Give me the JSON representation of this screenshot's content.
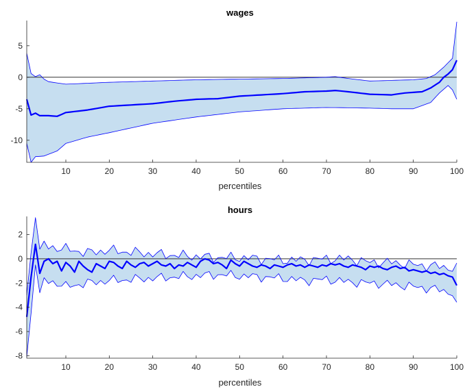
{
  "colors": {
    "band_fill": "#c6def0",
    "band_edge": "#0000ff",
    "median_line": "#0000ff",
    "zero_line": "#333333"
  },
  "chart_data": [
    {
      "type": "area",
      "title": "wages",
      "xlabel": "percentiles",
      "ylabel": "",
      "xlim": [
        1,
        100
      ],
      "ylim": [
        -13.5,
        9
      ],
      "xticks": [
        10,
        20,
        30,
        40,
        50,
        60,
        70,
        80,
        90,
        100
      ],
      "yticks": [
        -10,
        -5,
        0,
        5
      ],
      "ytick_labels": [
        "-10",
        "-5",
        "0",
        "5"
      ],
      "reference_line": 0,
      "x_step": 1,
      "x_start": 1,
      "series": [
        {
          "role": "median",
          "keyframes": [
            [
              1,
              -3.5
            ],
            [
              2,
              -6
            ],
            [
              3,
              -5.7
            ],
            [
              4,
              -6.1
            ],
            [
              6,
              -6.1
            ],
            [
              8,
              -6.2
            ],
            [
              10,
              -5.6
            ],
            [
              15,
              -5.2
            ],
            [
              20,
              -4.6
            ],
            [
              25,
              -4.4
            ],
            [
              30,
              -4.2
            ],
            [
              35,
              -3.8
            ],
            [
              40,
              -3.5
            ],
            [
              45,
              -3.4
            ],
            [
              50,
              -3.0
            ],
            [
              55,
              -2.8
            ],
            [
              60,
              -2.6
            ],
            [
              65,
              -2.3
            ],
            [
              70,
              -2.2
            ],
            [
              72,
              -2.1
            ],
            [
              75,
              -2.3
            ],
            [
              80,
              -2.7
            ],
            [
              85,
              -2.8
            ],
            [
              88,
              -2.5
            ],
            [
              90,
              -2.4
            ],
            [
              92,
              -2.3
            ],
            [
              94,
              -1.7
            ],
            [
              96,
              -0.8
            ],
            [
              97,
              0
            ],
            [
              98,
              0.5
            ],
            [
              99,
              1.2
            ],
            [
              100,
              2.7
            ]
          ]
        },
        {
          "role": "upper",
          "keyframes": [
            [
              1,
              3.8
            ],
            [
              2,
              0.6
            ],
            [
              3,
              0.1
            ],
            [
              4,
              0.4
            ],
            [
              5,
              -0.3
            ],
            [
              6,
              -0.7
            ],
            [
              8,
              -0.9
            ],
            [
              10,
              -1.1
            ],
            [
              20,
              -0.8
            ],
            [
              30,
              -0.6
            ],
            [
              40,
              -0.4
            ],
            [
              50,
              -0.3
            ],
            [
              60,
              -0.2
            ],
            [
              65,
              -0.1
            ],
            [
              70,
              0
            ],
            [
              72,
              0.1
            ],
            [
              75,
              -0.2
            ],
            [
              80,
              -0.6
            ],
            [
              85,
              -0.5
            ],
            [
              90,
              -0.4
            ],
            [
              93,
              -0.2
            ],
            [
              95,
              0.4
            ],
            [
              97,
              1.6
            ],
            [
              99,
              3.0
            ],
            [
              100,
              8.8
            ]
          ]
        },
        {
          "role": "lower",
          "keyframes": [
            [
              1,
              -10.5
            ],
            [
              2,
              -13.5
            ],
            [
              3,
              -12.6
            ],
            [
              5,
              -12.5
            ],
            [
              8,
              -11.7
            ],
            [
              10,
              -10.5
            ],
            [
              15,
              -9.5
            ],
            [
              20,
              -8.8
            ],
            [
              30,
              -7.3
            ],
            [
              40,
              -6.3
            ],
            [
              50,
              -5.5
            ],
            [
              60,
              -5.0
            ],
            [
              70,
              -4.8
            ],
            [
              80,
              -4.9
            ],
            [
              85,
              -5.0
            ],
            [
              90,
              -5.0
            ],
            [
              94,
              -4.0
            ],
            [
              96,
              -2.5
            ],
            [
              98,
              -1.3
            ],
            [
              99,
              -2.0
            ],
            [
              100,
              -3.5
            ]
          ]
        }
      ]
    },
    {
      "type": "area",
      "title": "hours",
      "xlabel": "percentiles",
      "ylabel": "",
      "xlim": [
        1,
        100
      ],
      "ylim": [
        -8.2,
        3.5
      ],
      "xticks": [
        10,
        20,
        30,
        40,
        50,
        60,
        70,
        80,
        90,
        100
      ],
      "yticks": [
        -8,
        -6,
        -4,
        -2,
        0,
        2
      ],
      "ytick_labels": [
        "-8",
        "-6",
        "-4",
        "-2",
        "0",
        "2"
      ],
      "reference_line": 0,
      "x_step": 1,
      "x_start": 1,
      "series": [
        {
          "role": "median",
          "values": [
            -4.8,
            -1.5,
            1.2,
            -1.2,
            -0.2,
            0,
            -0.4,
            -0.2,
            -1.0,
            -0.3,
            -0.6,
            -1.1,
            -0.2,
            -0.6,
            -0.9,
            -1.1,
            -0.4,
            -0.6,
            -0.8,
            -0.2,
            -0.3,
            -0.6,
            -0.8,
            -0.2,
            -0.5,
            -0.7,
            -0.4,
            -0.3,
            -0.6,
            -0.4,
            -0.2,
            -0.5,
            -0.6,
            -0.4,
            -0.8,
            -0.5,
            -0.6,
            -0.3,
            -0.5,
            -0.7,
            -0.2,
            0,
            -0.1,
            -0.4,
            -0.3,
            -0.5,
            -0.8,
            -0.1,
            -0.4,
            -0.6,
            -0.2,
            -0.4,
            -0.6,
            -0.7,
            -0.5,
            -0.6,
            -0.8,
            -0.5,
            -0.6,
            -0.7,
            -0.5,
            -0.4,
            -0.6,
            -0.5,
            -0.7,
            -0.5,
            -0.6,
            -0.7,
            -0.5,
            -0.6,
            -0.4,
            -0.5,
            -0.4,
            -0.6,
            -0.7,
            -0.5,
            -0.6,
            -0.7,
            -0.9,
            -0.6,
            -0.7,
            -0.6,
            -0.8,
            -0.9,
            -0.7,
            -0.6,
            -0.8,
            -0.7,
            -1.0,
            -0.9,
            -1.0,
            -1.1,
            -1.0,
            -1.2,
            -1.1,
            -1.3,
            -1.2,
            -1.4,
            -1.5,
            -2.2
          ]
        },
        {
          "role": "upper",
          "keyframes": [
            [
              1,
              -3.0
            ],
            [
              2,
              0.5
            ],
            [
              3,
              3.4
            ],
            [
              4,
              0.8
            ],
            [
              5,
              1.2
            ],
            [
              6,
              1.0
            ],
            [
              8,
              0.9
            ],
            [
              10,
              0.8
            ],
            [
              15,
              0.5
            ],
            [
              20,
              0.7
            ],
            [
              30,
              0.4
            ],
            [
              40,
              0.2
            ],
            [
              45,
              0.1
            ],
            [
              50,
              0.1
            ],
            [
              55,
              0
            ],
            [
              60,
              -0.1
            ],
            [
              65,
              -0.1
            ],
            [
              70,
              0
            ],
            [
              75,
              0
            ],
            [
              80,
              -0.3
            ],
            [
              85,
              -0.3
            ],
            [
              90,
              -0.5
            ],
            [
              95,
              -0.6
            ],
            [
              100,
              -0.8
            ]
          ],
          "jitter": 0.5
        },
        {
          "role": "lower",
          "keyframes": [
            [
              1,
              -8.1
            ],
            [
              2,
              -4.5
            ],
            [
              3,
              -0.5
            ],
            [
              4,
              -2.8
            ],
            [
              5,
              -1.8
            ],
            [
              8,
              -2.0
            ],
            [
              10,
              -2.3
            ],
            [
              15,
              -2.0
            ],
            [
              20,
              -1.8
            ],
            [
              30,
              -1.6
            ],
            [
              40,
              -1.4
            ],
            [
              45,
              -1.3
            ],
            [
              50,
              -1.4
            ],
            [
              55,
              -1.5
            ],
            [
              60,
              -1.6
            ],
            [
              65,
              -1.8
            ],
            [
              70,
              -1.7
            ],
            [
              75,
              -1.9
            ],
            [
              80,
              -2.0
            ],
            [
              85,
              -2.1
            ],
            [
              90,
              -2.3
            ],
            [
              95,
              -2.5
            ],
            [
              99,
              -2.8
            ],
            [
              100,
              -4.0
            ]
          ],
          "jitter": 0.45
        }
      ]
    }
  ]
}
